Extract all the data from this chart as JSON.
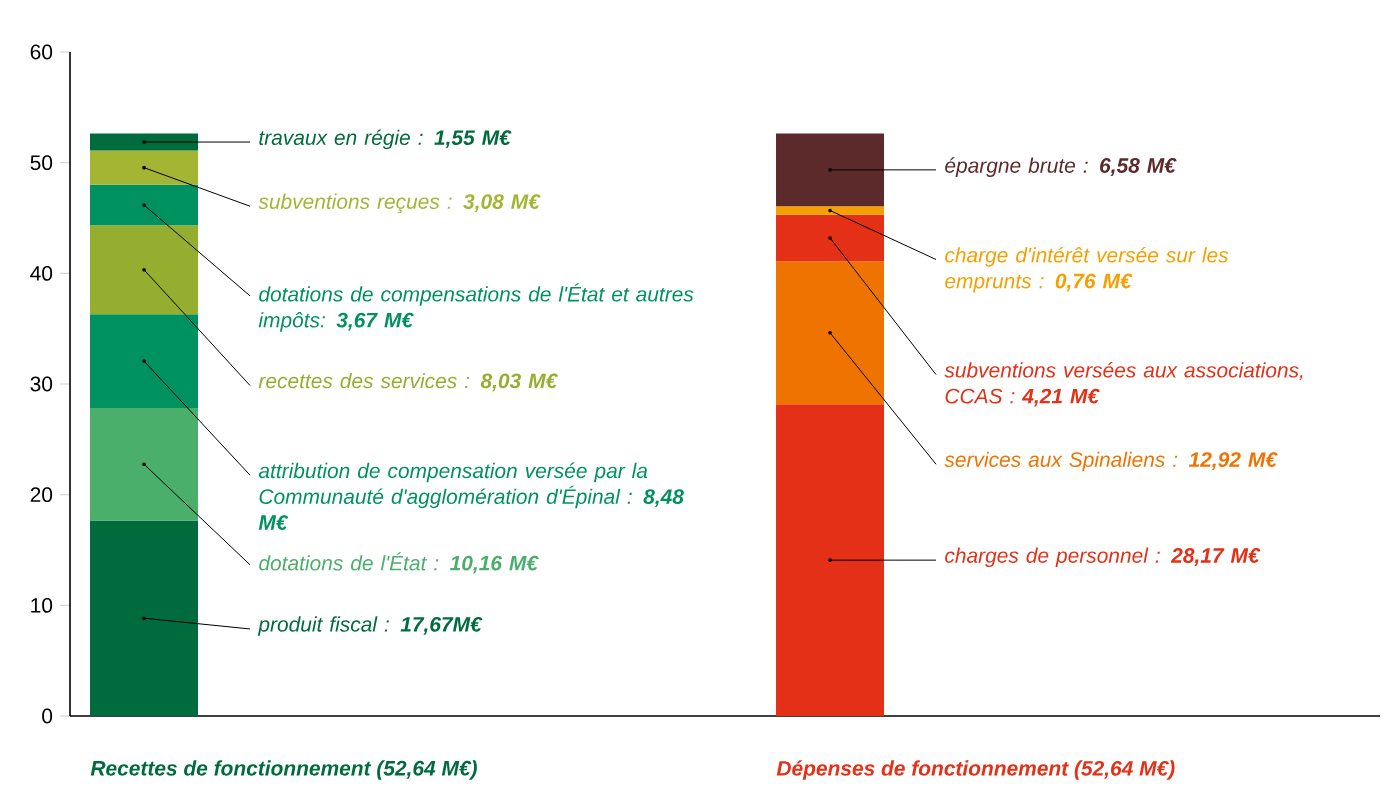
{
  "chart_data": {
    "type": "bar",
    "stacked": true,
    "categories": [
      "Recettes de fonctionnement (52,64 M€)",
      "Dépenses de fonctionnement (52,64 M€)"
    ],
    "series": [
      {
        "name": "produit fiscal : **17,67M€**",
        "color": "#006b3c",
        "values": [
          17.67,
          null
        ]
      },
      {
        "name": "dotations de l'État : **10,16 M€**",
        "color": "#4aaf6a",
        "values": [
          10.16,
          null
        ]
      },
      {
        "name": "attribution de compensation versée par la Communauté d'agglomération d'Épinal : **8,48 M€**",
        "color": "#009160",
        "values": [
          8.48,
          null
        ]
      },
      {
        "name": "recettes des services : **8,03 M€**",
        "color": "#95ae30",
        "values": [
          8.03,
          null
        ]
      },
      {
        "name": "dotations de compensations de l'État et autres impôts: **3,67 M€**",
        "color": "#009160",
        "values": [
          3.67,
          null
        ]
      },
      {
        "name": "subventions reçues : **3,08 M€**",
        "color": "#a3b532",
        "values": [
          3.08,
          null
        ]
      },
      {
        "name": "travaux en régie : **1,55 M€**",
        "color": "#006b3c",
        "values": [
          1.55,
          null
        ]
      },
      {
        "name": "charges de personnel : **28,17 M€**",
        "color": "#e33017",
        "values": [
          null,
          28.17
        ]
      },
      {
        "name": "services aux Spinaliens : **12,92 M€**",
        "color": "#ef7300",
        "values": [
          null,
          12.92
        ]
      },
      {
        "name": "subventions versées aux associations, CCAS : **4,21 M€**",
        "color": "#e33017",
        "values": [
          null,
          4.21
        ]
      },
      {
        "name": "charge d'intérêt versée sur les emprunts : **0,76 M€**",
        "color": "#f5a000",
        "values": [
          null,
          0.76
        ]
      },
      {
        "name": "épargne brute :  **6,58 M€**",
        "color": "#5c2a2a",
        "values": [
          null,
          6.58
        ]
      }
    ],
    "ylim": [
      0,
      60
    ],
    "yticks": [
      0,
      10,
      20,
      30,
      40,
      50,
      60
    ]
  }
}
